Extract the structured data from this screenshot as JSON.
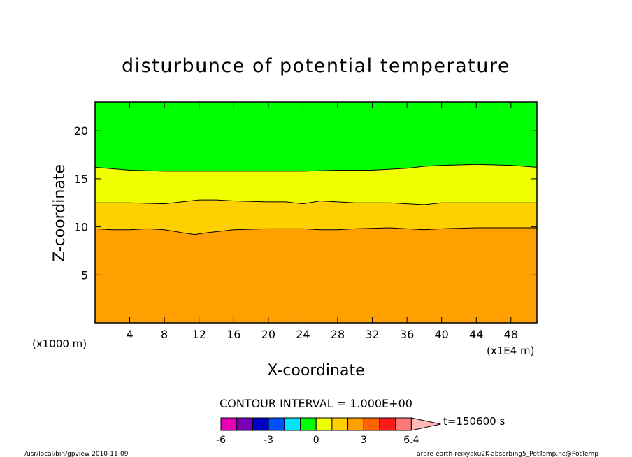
{
  "chart_data": {
    "type": "contour",
    "title": "disturbunce of potential temperature",
    "xlabel": "X-coordinate",
    "ylabel": "Z-coordinate",
    "x_unit_left": "(x1000 m)",
    "x_unit_right": "(x1E4 m)",
    "xlim": [
      0,
      51
    ],
    "ylim": [
      0,
      23
    ],
    "x_ticks": [
      4,
      8,
      12,
      16,
      20,
      24,
      28,
      32,
      36,
      40,
      44,
      48
    ],
    "y_ticks": [
      5,
      10,
      15,
      20
    ],
    "contour_interval_label": "CONTOUR INTERVAL = 1.000E+00",
    "time_label": "t=150600 s",
    "colorbar": {
      "labels": [
        "-6",
        "-3",
        "0",
        "3",
        "6.4"
      ],
      "colors": [
        "#e800b8",
        "#7a00b8",
        "#0000c8",
        "#0050ff",
        "#00e4ff",
        "#00ff00",
        "#f0ff00",
        "#ffd000",
        "#ffa000",
        "#ff6400",
        "#ff1a1a",
        "#ff7878",
        "#ffb8b8"
      ]
    },
    "levels": [
      {
        "value": 1,
        "color": "#00ff00",
        "boundary": [
          [
            0,
            16.2
          ],
          [
            4,
            15.9
          ],
          [
            8,
            15.8
          ],
          [
            12,
            15.8
          ],
          [
            16,
            15.8
          ],
          [
            20,
            15.8
          ],
          [
            24,
            15.8
          ],
          [
            28,
            15.9
          ],
          [
            32,
            15.9
          ],
          [
            36,
            16.1
          ],
          [
            38,
            16.3
          ],
          [
            40,
            16.4
          ],
          [
            44,
            16.5
          ],
          [
            48,
            16.4
          ],
          [
            51,
            16.2
          ]
        ]
      },
      {
        "value": 2,
        "color": "#f0ff00",
        "boundary": [
          [
            0,
            12.5
          ],
          [
            4,
            12.5
          ],
          [
            8,
            12.4
          ],
          [
            10,
            12.6
          ],
          [
            12,
            12.8
          ],
          [
            14,
            12.8
          ],
          [
            16,
            12.7
          ],
          [
            20,
            12.6
          ],
          [
            22,
            12.6
          ],
          [
            24,
            12.4
          ],
          [
            26,
            12.7
          ],
          [
            28,
            12.6
          ],
          [
            30,
            12.5
          ],
          [
            34,
            12.5
          ],
          [
            36,
            12.4
          ],
          [
            38,
            12.3
          ],
          [
            40,
            12.5
          ],
          [
            44,
            12.5
          ],
          [
            48,
            12.5
          ],
          [
            51,
            12.5
          ]
        ]
      },
      {
        "value": 3,
        "color": "#ffd000",
        "boundary": [
          [
            0,
            9.8
          ],
          [
            2,
            9.7
          ],
          [
            4,
            9.7
          ],
          [
            6,
            9.8
          ],
          [
            8,
            9.7
          ],
          [
            10,
            9.4
          ],
          [
            11.5,
            9.2
          ],
          [
            13,
            9.4
          ],
          [
            16,
            9.7
          ],
          [
            20,
            9.8
          ],
          [
            24,
            9.8
          ],
          [
            26,
            9.7
          ],
          [
            28,
            9.7
          ],
          [
            30,
            9.8
          ],
          [
            34,
            9.9
          ],
          [
            36,
            9.8
          ],
          [
            38,
            9.7
          ],
          [
            40,
            9.8
          ],
          [
            44,
            9.9
          ],
          [
            48,
            9.9
          ],
          [
            51,
            9.9
          ]
        ]
      },
      {
        "value": 4,
        "color": "#ffa000",
        "boundary": []
      }
    ]
  },
  "footer": {
    "left": "/usr/local/bin/gpview  2010-11-09",
    "right": "arare-earth-reikyaku2K-absorbing5_PotTemp.nc@PotTemp"
  }
}
